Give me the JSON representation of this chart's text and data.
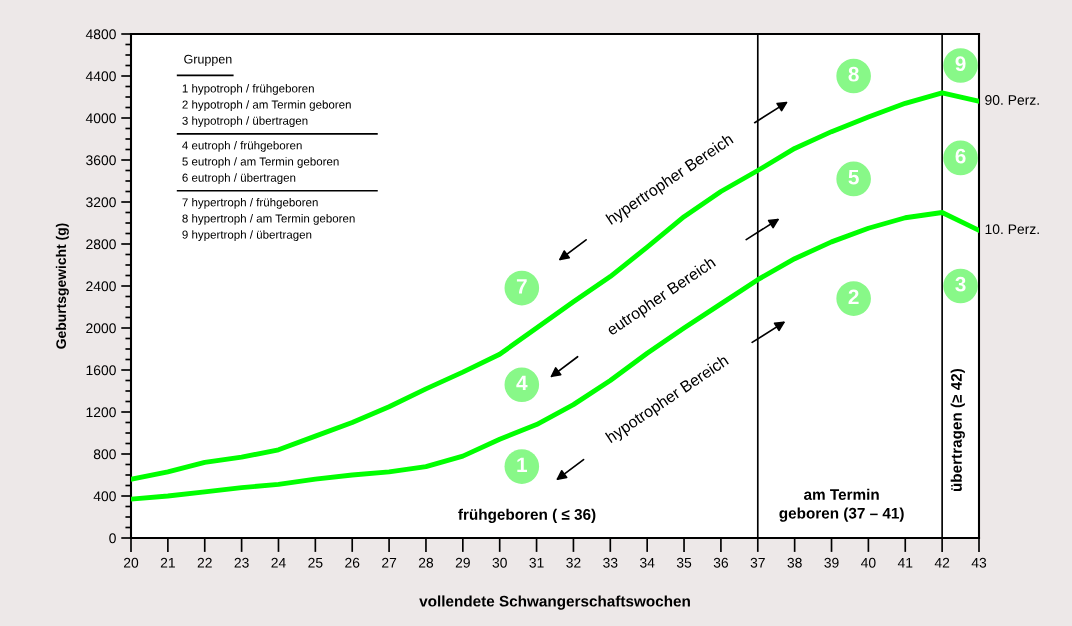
{
  "chart_data": {
    "type": "line",
    "xlabel": "vollendete Schwangerschaftswochen",
    "ylabel": "Geburtsgewicht (g)",
    "x": [
      20,
      21,
      22,
      23,
      24,
      25,
      26,
      27,
      28,
      29,
      30,
      31,
      32,
      33,
      34,
      35,
      36,
      37,
      38,
      39,
      40,
      41,
      42,
      43
    ],
    "series": [
      {
        "name": "90. Perz.",
        "color": "#00ff00",
        "values": [
          560,
          630,
          720,
          770,
          840,
          970,
          1100,
          1250,
          1420,
          1580,
          1750,
          2000,
          2250,
          2490,
          2770,
          3060,
          3300,
          3500,
          3710,
          3870,
          4010,
          4140,
          4240,
          4160
        ]
      },
      {
        "name": "10. Perz.",
        "color": "#00ff00",
        "values": [
          370,
          400,
          440,
          480,
          510,
          560,
          600,
          630,
          680,
          780,
          940,
          1080,
          1270,
          1500,
          1760,
          2000,
          2230,
          2460,
          2660,
          2820,
          2950,
          3050,
          3100,
          2930
        ]
      }
    ],
    "xlim": [
      20,
      43
    ],
    "xticks": [
      20,
      21,
      22,
      23,
      24,
      25,
      26,
      27,
      28,
      29,
      30,
      31,
      32,
      33,
      34,
      35,
      36,
      37,
      38,
      39,
      40,
      41,
      42,
      43
    ],
    "ylim": [
      0,
      4800
    ],
    "yticks": [
      0,
      400,
      800,
      1200,
      1600,
      2000,
      2400,
      2800,
      3200,
      3600,
      4000,
      4400,
      4800
    ],
    "ref_lines": [
      {
        "axis": "x",
        "value": 37,
        "color": "#000000"
      },
      {
        "axis": "x",
        "value": 42,
        "color": "#000000"
      }
    ],
    "grid": false,
    "legend": false,
    "marker": "none",
    "line_style": "solid",
    "annotations": [
      "Gruppen",
      "1 hypotroph / frühgeboren",
      "2 hypotroph / am Termin geboren",
      "3 hypotroph / übertragen",
      "4 eutroph / frühgeboren",
      "5 eutroph / am Termin geboren",
      "6 eutroph / übertragen",
      "7 hypertroph / frühgeboren",
      "8 hypertroph / am Termin geboren",
      "9 hypertroph / übertragen",
      "hypertropher Bereich",
      "eutropher Bereich",
      "hypotropher Bereich",
      "frühgeboren ( ≤ 36)",
      "am Termin\ngeboren (37 – 41)",
      "übertragen (≥ 42)",
      {
        "text": "1",
        "x": 30.6,
        "y": 680
      },
      {
        "text": "2",
        "x": 39.6,
        "y": 2280
      },
      {
        "text": "3",
        "x": 42.5,
        "y": 2400
      },
      {
        "text": "4",
        "x": 30.6,
        "y": 1460
      },
      {
        "text": "5",
        "x": 39.6,
        "y": 3420
      },
      {
        "text": "6",
        "x": 42.5,
        "y": 3620
      },
      {
        "text": "7",
        "x": 30.6,
        "y": 2380
      },
      {
        "text": "8",
        "x": 39.6,
        "y": 4400
      },
      {
        "text": "9",
        "x": 42.5,
        "y": 4500
      }
    ]
  }
}
